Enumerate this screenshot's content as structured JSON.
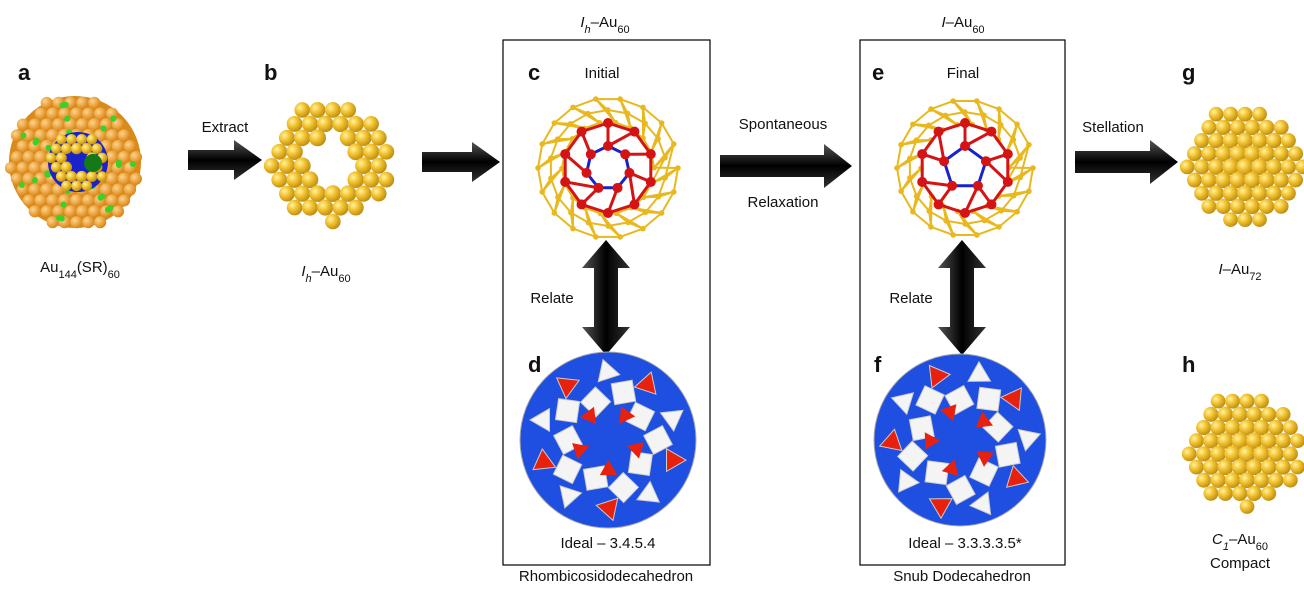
{
  "panel_letters": [
    "a",
    "b",
    "c",
    "d",
    "e",
    "f",
    "g",
    "h"
  ],
  "arrow_labels": {
    "extract": "Extract",
    "spontaneous": "Spontaneous",
    "relaxation": "Relaxation",
    "stellation": "Stellation"
  },
  "relate_labels": [
    "Relate",
    "Relate"
  ],
  "box_titles": [
    [
      "I",
      "h",
      "–Au",
      "60"
    ],
    [
      "I",
      "–Au",
      "60"
    ]
  ],
  "stage_labels": [
    "Initial",
    "Final"
  ],
  "ideal_labels": [
    "Ideal – 3.4.5.4",
    "Ideal – 3.3.3.3.5*"
  ],
  "polyhedron_names": [
    "Rhombicosidodecahedron",
    "Snub Dodecahedron"
  ],
  "captions": {
    "a": [
      "Au",
      "144",
      "(SR)",
      "60"
    ],
    "b": [
      "I",
      "h",
      "–Au",
      "60"
    ],
    "g": [
      "I",
      "–Au",
      "72"
    ],
    "h": [
      "C",
      "1",
      "–Au",
      "60"
    ],
    "h_note": "Compact"
  }
}
